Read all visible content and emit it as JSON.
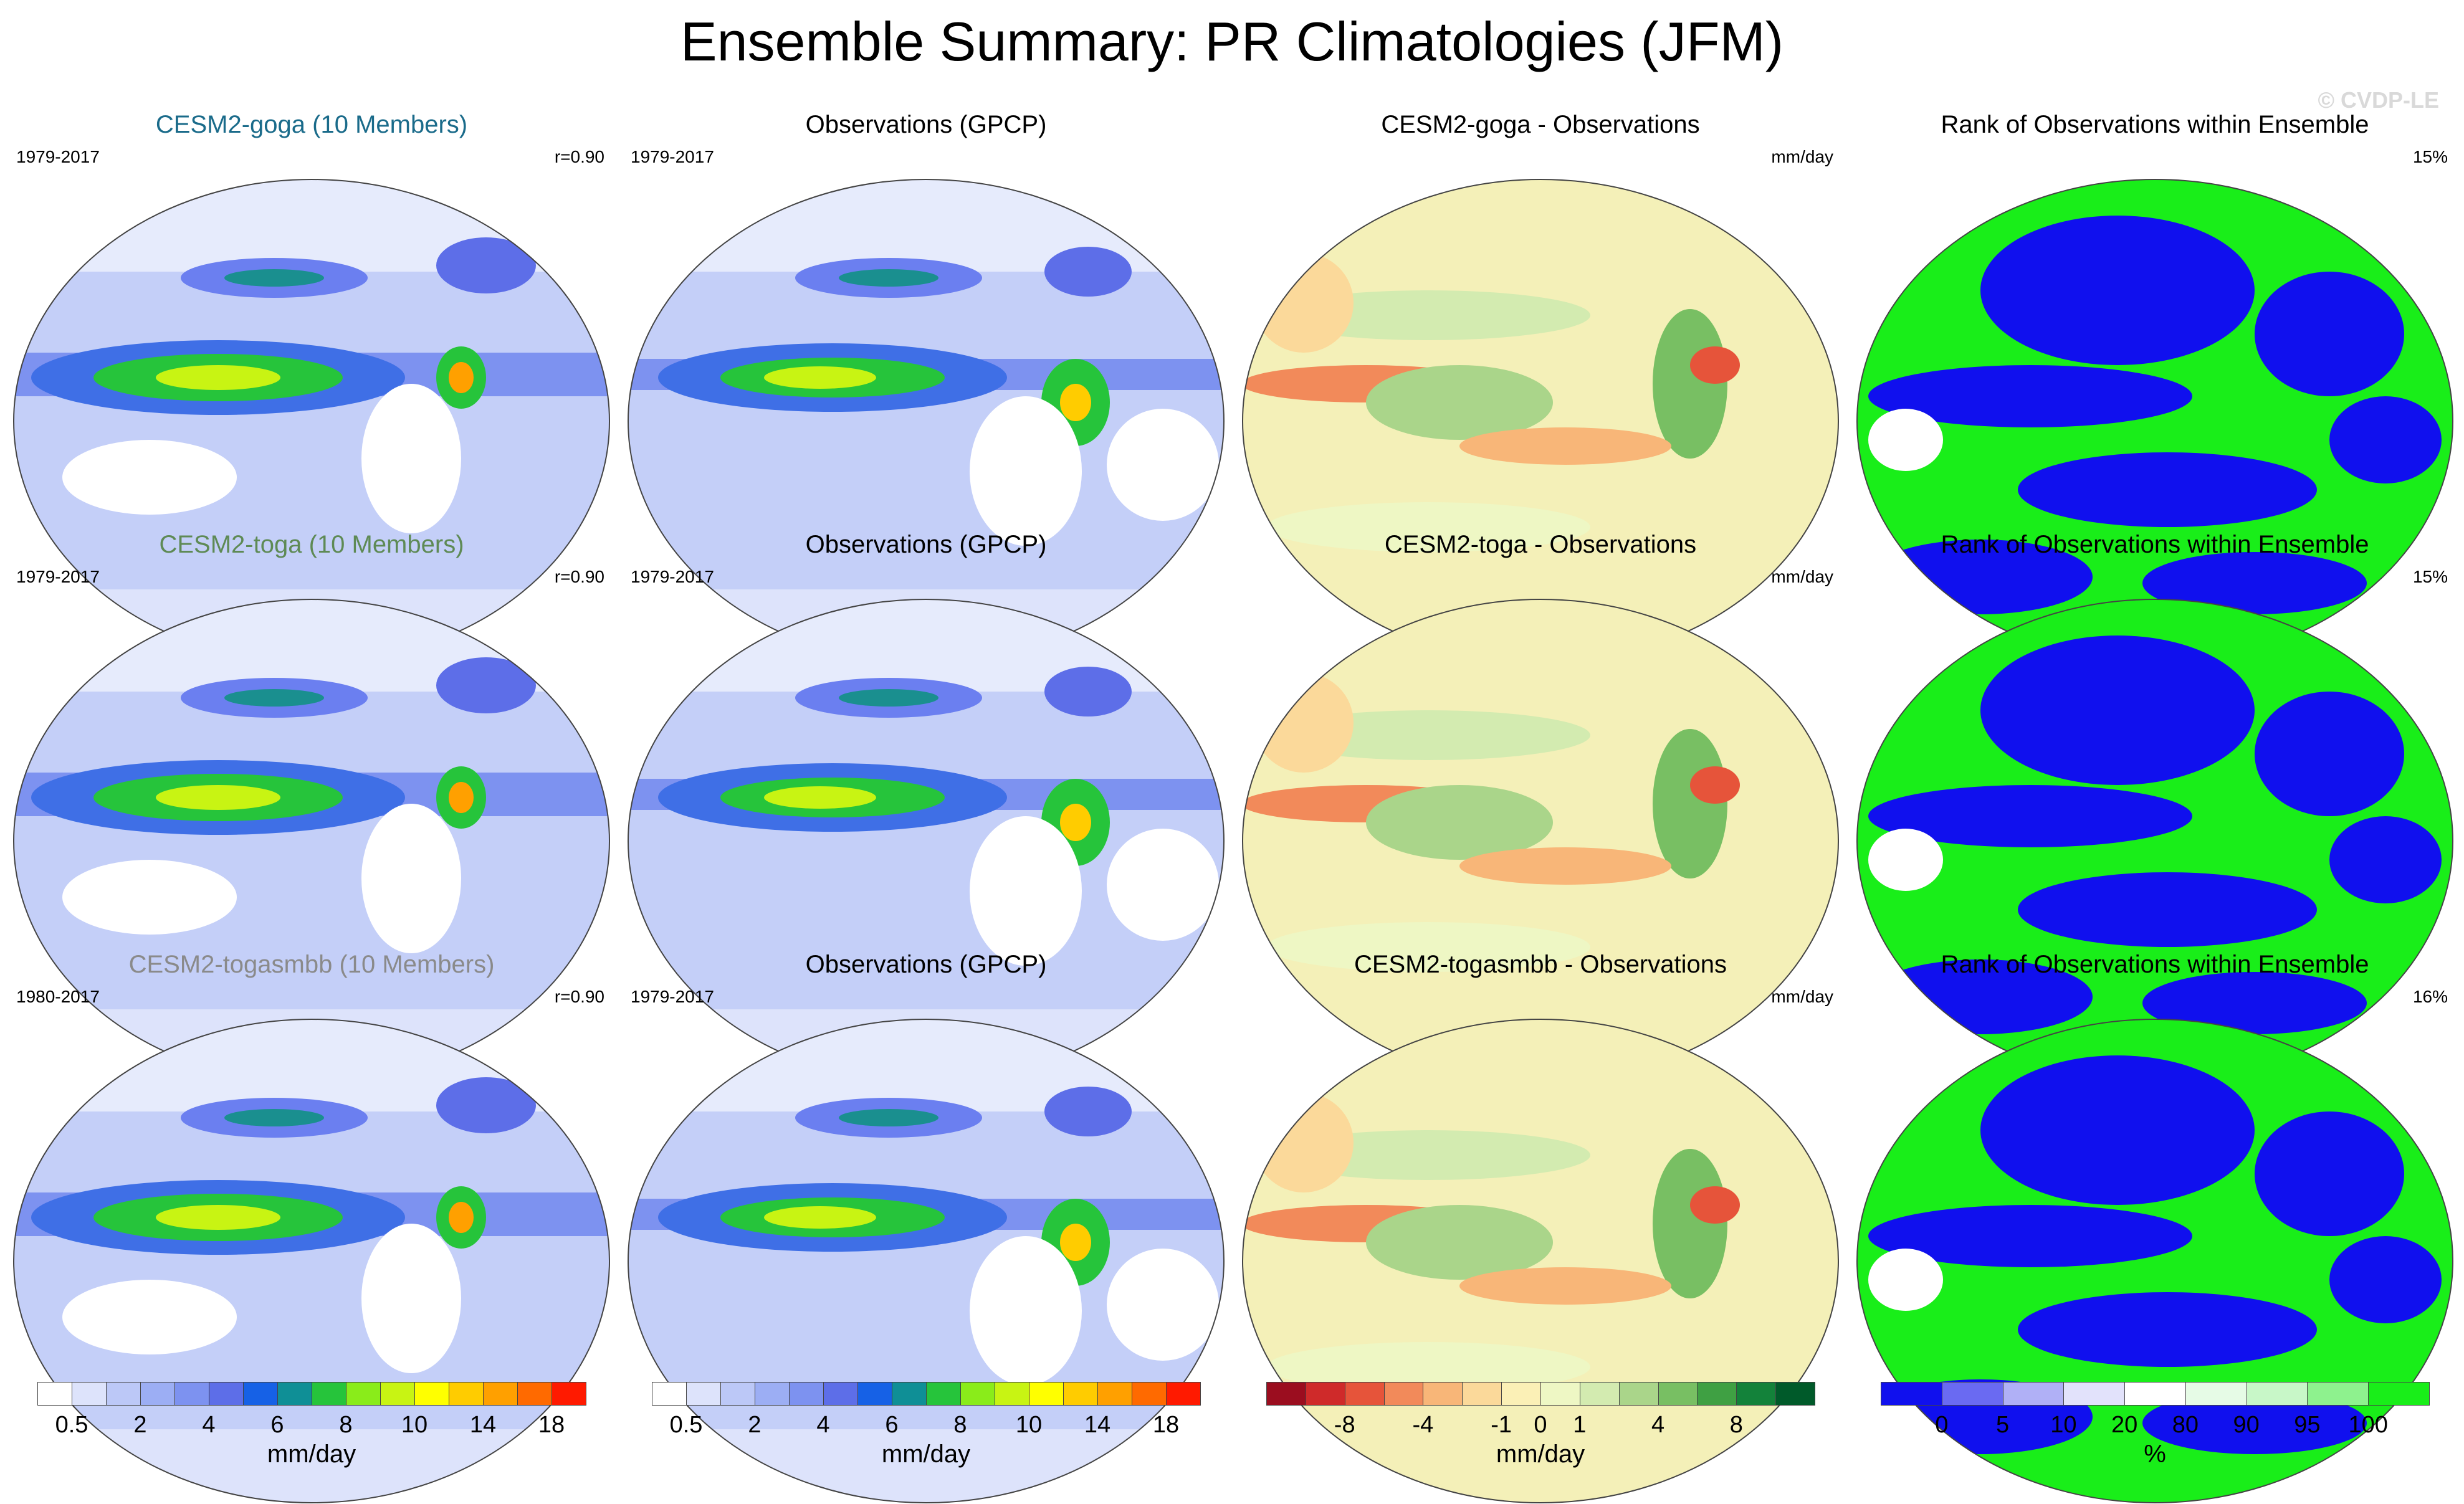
{
  "title": "Ensemble Summary: PR Climatologies (JFM)",
  "copyright": "© CVDP-LE",
  "rows": [
    {
      "model": {
        "title": "CESM2-goga (10 Members)",
        "title_color": "#1a6b8a",
        "years": "1979-2017",
        "corr": "r=0.90"
      },
      "obs": {
        "title": "Observations (GPCP)",
        "years": "1979-2017"
      },
      "diff": {
        "title": "CESM2-goga - Observations",
        "units": "mm/day"
      },
      "rank": {
        "title": "Rank of Observations within Ensemble",
        "pct": "15%"
      }
    },
    {
      "model": {
        "title": "CESM2-toga (10 Members)",
        "title_color": "#5e8a55",
        "years": "1979-2017",
        "corr": "r=0.90"
      },
      "obs": {
        "title": "Observations (GPCP)",
        "years": "1979-2017"
      },
      "diff": {
        "title": "CESM2-toga - Observations",
        "units": "mm/day"
      },
      "rank": {
        "title": "Rank of Observations within Ensemble",
        "pct": "15%"
      }
    },
    {
      "model": {
        "title": "CESM2-togasmbb (10 Members)",
        "title_color": "#8a8a8a",
        "years": "1980-2017",
        "corr": "r=0.90"
      },
      "obs": {
        "title": "Observations (GPCP)",
        "years": "1979-2017"
      },
      "diff": {
        "title": "CESM2-togasmbb - Observations",
        "units": "mm/day"
      },
      "rank": {
        "title": "Rank of Observations within Ensemble",
        "pct": "16%"
      }
    }
  ],
  "colorbars": [
    {
      "id": "clim-model",
      "units": "mm/day",
      "colors": [
        "#ffffff",
        "#dde3fb",
        "#bcc8f7",
        "#9caef4",
        "#7d92f0",
        "#5d6ee8",
        "#1661e6",
        "#0f8f96",
        "#26c43b",
        "#8aec1a",
        "#c8f413",
        "#ffff00",
        "#ffcc00",
        "#ffa000",
        "#ff6a00",
        "#ff1a00"
      ],
      "labels": [
        "0.5",
        "2",
        "4",
        "6",
        "8",
        "10",
        "14",
        "18"
      ]
    },
    {
      "id": "clim-obs",
      "units": "mm/day",
      "colors": [
        "#ffffff",
        "#dde3fb",
        "#bcc8f7",
        "#9caef4",
        "#7d92f0",
        "#5d6ee8",
        "#1661e6",
        "#0f8f96",
        "#26c43b",
        "#8aec1a",
        "#c8f413",
        "#ffff00",
        "#ffcc00",
        "#ffa000",
        "#ff6a00",
        "#ff1a00"
      ],
      "labels": [
        "0.5",
        "2",
        "4",
        "6",
        "8",
        "10",
        "14",
        "18"
      ]
    },
    {
      "id": "difference",
      "units": "mm/day",
      "colors": [
        "#9b0d1f",
        "#cf2a2a",
        "#e6543a",
        "#f28a5a",
        "#f8b678",
        "#fbd99a",
        "#fbf0b6",
        "#eef7c4",
        "#d3ebb0",
        "#aad58a",
        "#78bf63",
        "#3fa043",
        "#13823a",
        "#005a2a"
      ],
      "labels": [
        "-8",
        "-4",
        "-1",
        "0",
        "1",
        "4",
        "8"
      ]
    },
    {
      "id": "rank",
      "units": "%",
      "colors": [
        "#1010ee",
        "#6a6af2",
        "#b0b0f6",
        "#e2e2fb",
        "#ffffff",
        "#e6fbe6",
        "#c8f7c8",
        "#8ef28e",
        "#19ee19"
      ],
      "labels": [
        "0",
        "5",
        "10",
        "20",
        "80",
        "90",
        "95",
        "100"
      ]
    }
  ]
}
